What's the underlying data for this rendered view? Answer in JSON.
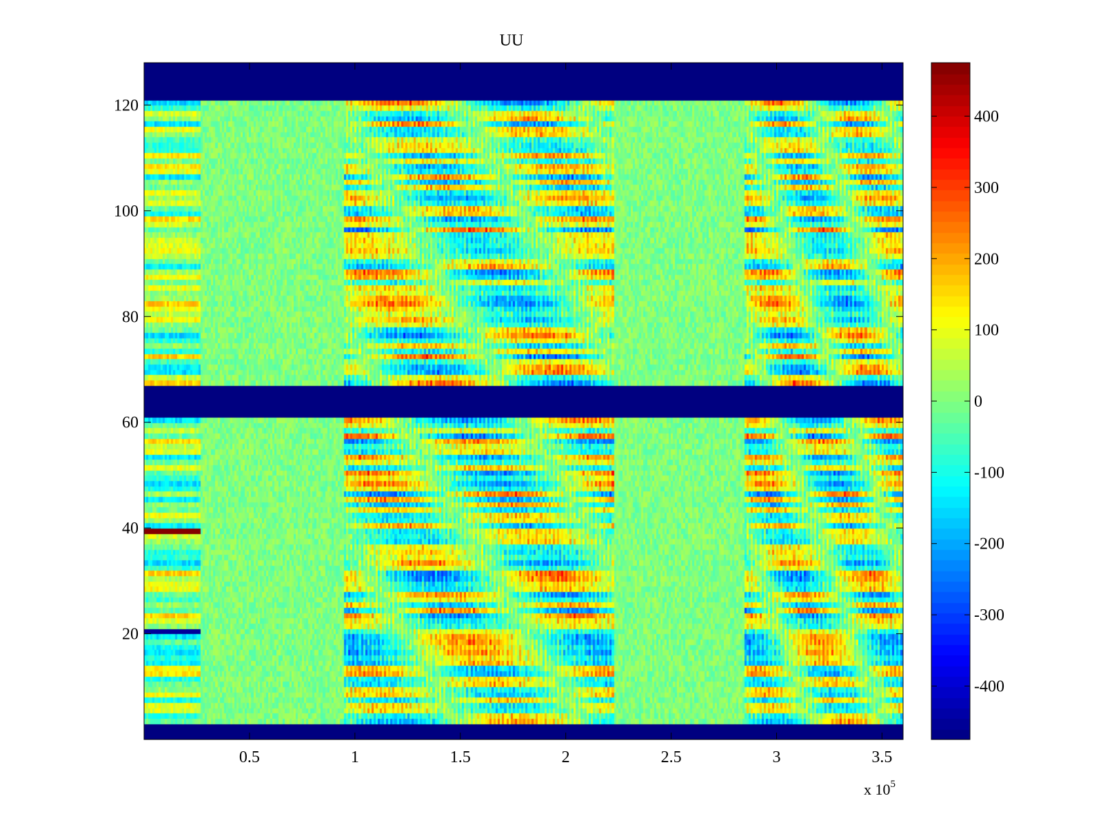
{
  "chart_data": {
    "type": "heatmap",
    "title": "UU",
    "xlabel": "",
    "ylabel": "",
    "x_multiplier": "x 10",
    "x_multiplier_exponent": "5",
    "xlim": [
      0,
      3.6
    ],
    "ylim": [
      0,
      128
    ],
    "xticks": [
      0.5,
      1,
      1.5,
      2,
      2.5,
      3,
      3.5
    ],
    "xtick_labels": [
      "0.5",
      "1",
      "1.5",
      "2",
      "2.5",
      "3",
      "3.5"
    ],
    "yticks": [
      20,
      40,
      60,
      80,
      100,
      120
    ],
    "ytick_labels": [
      "20",
      "40",
      "60",
      "80",
      "100",
      "120"
    ],
    "colorbar": {
      "colormap": "jet",
      "clim": [
        -475,
        475
      ],
      "ticks": [
        400,
        300,
        200,
        100,
        0,
        -100,
        -200,
        -300,
        -400
      ],
      "tick_labels": [
        "400",
        "300",
        "200",
        "100",
        "0",
        "-100",
        "-200",
        "-300",
        "-400"
      ]
    },
    "masked_rows_fill": -475,
    "masked_row_bands": [
      [
        0,
        3
      ],
      [
        61,
        67
      ],
      [
        121,
        128
      ]
    ],
    "active_time_segments": [
      {
        "x_start": 0.0,
        "x_end": 0.27,
        "description": "strong row-striped values"
      },
      {
        "x_start": 0.27,
        "x_end": 0.95,
        "description": "quiet, near 0"
      },
      {
        "x_start": 0.95,
        "x_end": 2.23,
        "description": "high amplitude oscillation"
      },
      {
        "x_start": 2.23,
        "x_end": 2.85,
        "description": "quiet, near 0"
      },
      {
        "x_start": 2.85,
        "x_end": 3.6,
        "description": "high amplitude oscillation"
      }
    ],
    "extreme_rows": [
      {
        "row": 39,
        "value": 470,
        "x_start": 0.0,
        "x_end": 0.27
      },
      {
        "row": 20,
        "value": -450,
        "x_start": 0.0,
        "x_end": 0.27
      }
    ]
  }
}
